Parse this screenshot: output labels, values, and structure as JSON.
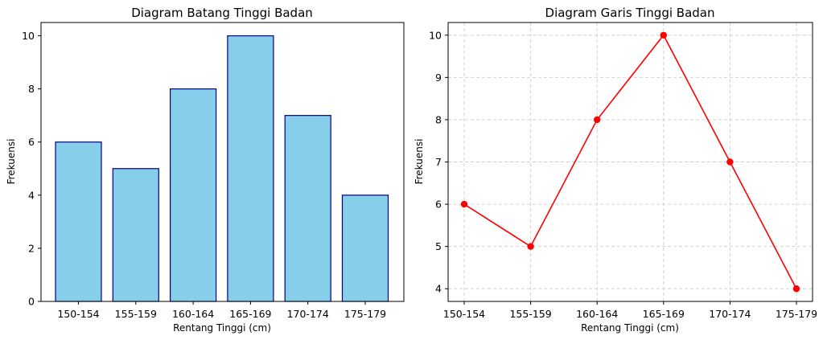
{
  "chart_data": [
    {
      "type": "bar",
      "title": "Diagram Batang Tinggi Badan",
      "xlabel": "Rentang Tinggi (cm)",
      "ylabel": "Frekuensi",
      "categories": [
        "150-154",
        "155-159",
        "160-164",
        "165-169",
        "170-174",
        "175-179"
      ],
      "values": [
        6,
        5,
        8,
        10,
        7,
        4
      ],
      "ylim": [
        0,
        10.5
      ],
      "yticks": [
        0,
        2,
        4,
        6,
        8,
        10
      ],
      "grid": false,
      "colors": {
        "fill": "#87CEEB",
        "edge": "#000080"
      }
    },
    {
      "type": "line",
      "title": "Diagram Garis Tinggi Badan",
      "xlabel": "Rentang Tinggi (cm)",
      "ylabel": "Frekuensi",
      "categories": [
        "150-154",
        "155-159",
        "160-164",
        "165-169",
        "170-174",
        "175-179"
      ],
      "values": [
        6,
        5,
        8,
        10,
        7,
        4
      ],
      "ylim": [
        3.7,
        10.3
      ],
      "yticks": [
        4,
        5,
        6,
        7,
        8,
        9,
        10
      ],
      "grid": true,
      "marker": "circle",
      "colors": {
        "line": "#FF0000",
        "grid": "#cccccc"
      }
    }
  ]
}
